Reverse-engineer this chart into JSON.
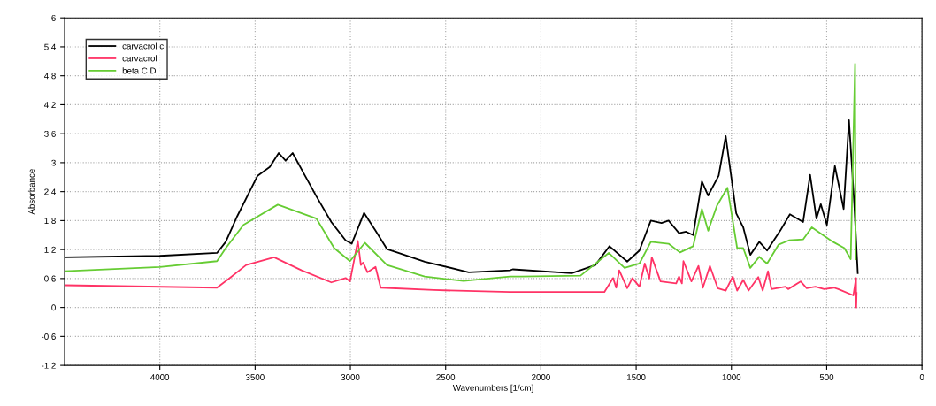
{
  "chart_data": {
    "type": "line",
    "xlabel": "Wavenumbers [1/cm]",
    "ylabel": "Absorbance",
    "xlim": [
      4500,
      0
    ],
    "xticks": [
      4000,
      3500,
      3000,
      2500,
      2000,
      1500,
      1000,
      500,
      0
    ],
    "ylim": [
      -1.2,
      6
    ],
    "yticks": [
      {
        "value": -1.2,
        "label": "-1,2"
      },
      {
        "value": -0.6,
        "label": "-0,6"
      },
      0,
      {
        "value": 0.6,
        "label": "0,6"
      },
      {
        "value": 1.2,
        "label": "1,2"
      },
      {
        "value": 1.8,
        "label": "1,8"
      },
      {
        "value": 2.4,
        "label": "2,4"
      },
      3,
      {
        "value": 3.6,
        "label": "3,6"
      },
      {
        "value": 4.2,
        "label": "4,2"
      },
      {
        "value": 4.8,
        "label": "4,8"
      },
      {
        "value": 5.4,
        "label": "5,4"
      },
      6
    ],
    "grid": true,
    "legend": "top left",
    "line_style": "solid",
    "marker": "none",
    "series": [
      {
        "name": "carvacrol c",
        "color": "#000000",
        "x": [
          4500,
          4000,
          3700,
          3654,
          3594,
          3487,
          3423,
          3376,
          3340,
          3303,
          3238,
          3178,
          3100,
          3025,
          2993,
          2928,
          2868,
          2808,
          2748,
          2610,
          2379,
          2162,
          2148,
          1838,
          1714,
          1640,
          1547,
          1483,
          1423,
          1367,
          1330,
          1275,
          1238,
          1201,
          1155,
          1122,
          1067,
          1030,
          975,
          938,
          901,
          854,
          813,
          744,
          693,
          624,
          587,
          554,
          531,
          499,
          457,
          411,
          383,
          355,
          337
        ],
        "values": [
          1.04,
          1.07,
          1.13,
          1.36,
          1.89,
          2.73,
          2.91,
          3.2,
          3.04,
          3.2,
          2.73,
          2.3,
          1.77,
          1.39,
          1.32,
          1.96,
          1.59,
          1.21,
          1.13,
          0.95,
          0.73,
          0.77,
          0.79,
          0.71,
          0.88,
          1.27,
          0.95,
          1.18,
          1.8,
          1.75,
          1.8,
          1.54,
          1.57,
          1.5,
          2.61,
          2.32,
          2.73,
          3.55,
          1.95,
          1.66,
          1.09,
          1.36,
          1.18,
          1.59,
          1.93,
          1.77,
          2.75,
          1.84,
          2.14,
          1.71,
          2.93,
          2.04,
          3.88,
          2.13,
          0.71
        ]
      },
      {
        "name": "carvacrol",
        "color": "#ff3366",
        "x": [
          4500,
          3700,
          3640,
          3547,
          3400,
          3256,
          3100,
          3025,
          3002,
          2961,
          2945,
          2933,
          2910,
          2868,
          2841,
          2563,
          2162,
          1667,
          1621,
          1605,
          1589,
          1547,
          1520,
          1483,
          1455,
          1431,
          1418,
          1372,
          1290,
          1275,
          1260,
          1252,
          1210,
          1173,
          1150,
          1113,
          1072,
          1030,
          993,
          970,
          938,
          910,
          859,
          836,
          808,
          790,
          716,
          702,
          637,
          605,
          559,
          513,
          462,
          439,
          360,
          346,
          345,
          343
        ],
        "values": [
          0.46,
          0.41,
          0.59,
          0.88,
          1.04,
          0.77,
          0.52,
          0.61,
          0.54,
          1.38,
          0.88,
          0.93,
          0.73,
          0.84,
          0.41,
          0.36,
          0.32,
          0.32,
          0.61,
          0.41,
          0.77,
          0.4,
          0.61,
          0.43,
          0.91,
          0.6,
          1.04,
          0.54,
          0.5,
          0.64,
          0.5,
          0.96,
          0.54,
          0.86,
          0.41,
          0.86,
          0.4,
          0.35,
          0.64,
          0.35,
          0.57,
          0.35,
          0.63,
          0.35,
          0.75,
          0.38,
          0.43,
          0.38,
          0.54,
          0.4,
          0.43,
          0.38,
          0.41,
          0.38,
          0.25,
          0.61,
          0.0,
          0.3
        ]
      },
      {
        "name": "beta C D",
        "color": "#66cc33",
        "x": [
          4500,
          4000,
          3700,
          3654,
          3561,
          3381,
          3178,
          3085,
          3002,
          2924,
          2808,
          2610,
          2406,
          2162,
          2102,
          1792,
          1644,
          1561,
          1483,
          1423,
          1330,
          1270,
          1201,
          1155,
          1122,
          1076,
          1021,
          970,
          938,
          901,
          854,
          813,
          753,
          698,
          624,
          578,
          513,
          467,
          407,
          374,
          351,
          348
        ],
        "values": [
          0.75,
          0.84,
          0.96,
          1.23,
          1.71,
          2.13,
          1.84,
          1.23,
          0.96,
          1.34,
          0.88,
          0.64,
          0.55,
          0.64,
          0.64,
          0.66,
          1.13,
          0.82,
          0.91,
          1.36,
          1.32,
          1.14,
          1.27,
          2.04,
          1.59,
          2.11,
          2.48,
          1.23,
          1.23,
          0.82,
          1.05,
          0.91,
          1.3,
          1.39,
          1.41,
          1.66,
          1.48,
          1.36,
          1.23,
          1.0,
          5.05,
          1.0
        ]
      }
    ]
  }
}
